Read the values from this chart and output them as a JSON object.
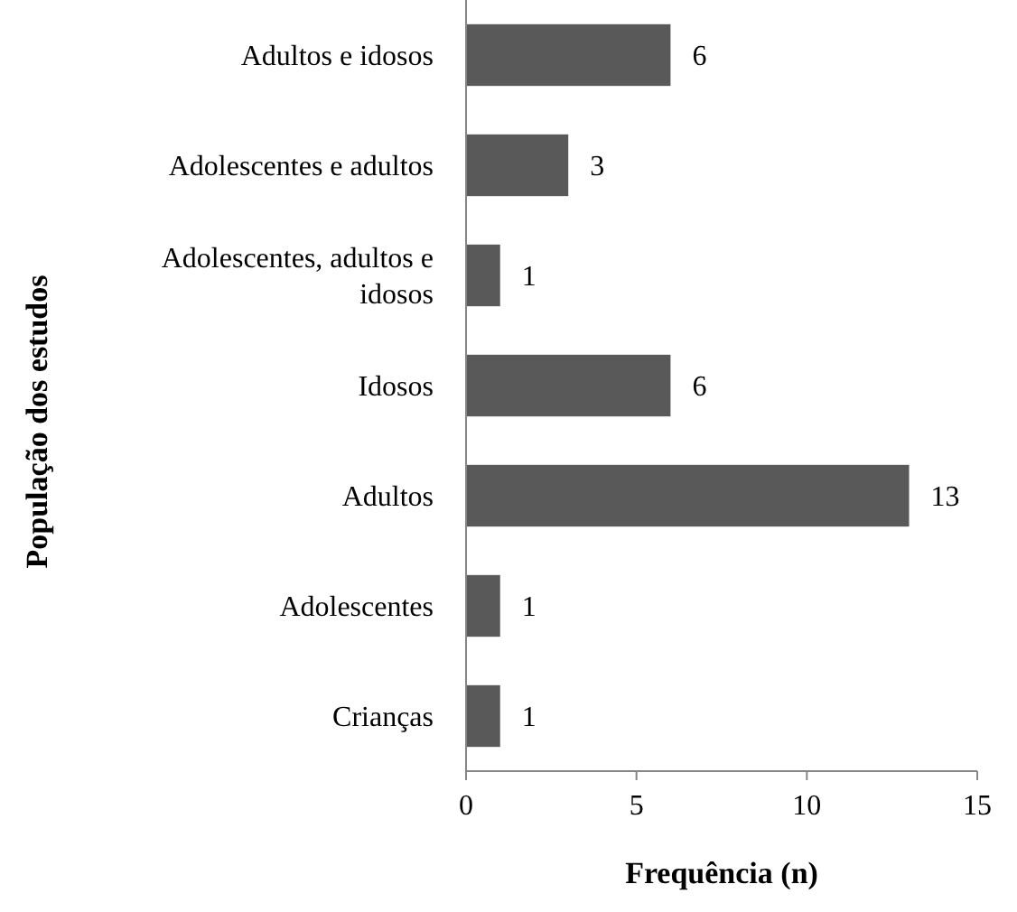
{
  "chart_data": {
    "type": "bar",
    "orientation": "horizontal",
    "xlabel": "Frequência (n)",
    "ylabel": "População dos estudos",
    "categories": [
      "Adultos e idosos",
      "Adolescentes e adultos",
      "Adolescentes, adultos e idosos",
      "Idosos",
      "Adultos",
      "Adolescentes",
      "Crianças"
    ],
    "values": [
      6,
      3,
      1,
      6,
      13,
      1,
      1
    ],
    "color": "#595959",
    "xlim": [
      0,
      15
    ],
    "xticks": [
      0,
      5,
      10,
      15
    ],
    "data_labels": true
  }
}
